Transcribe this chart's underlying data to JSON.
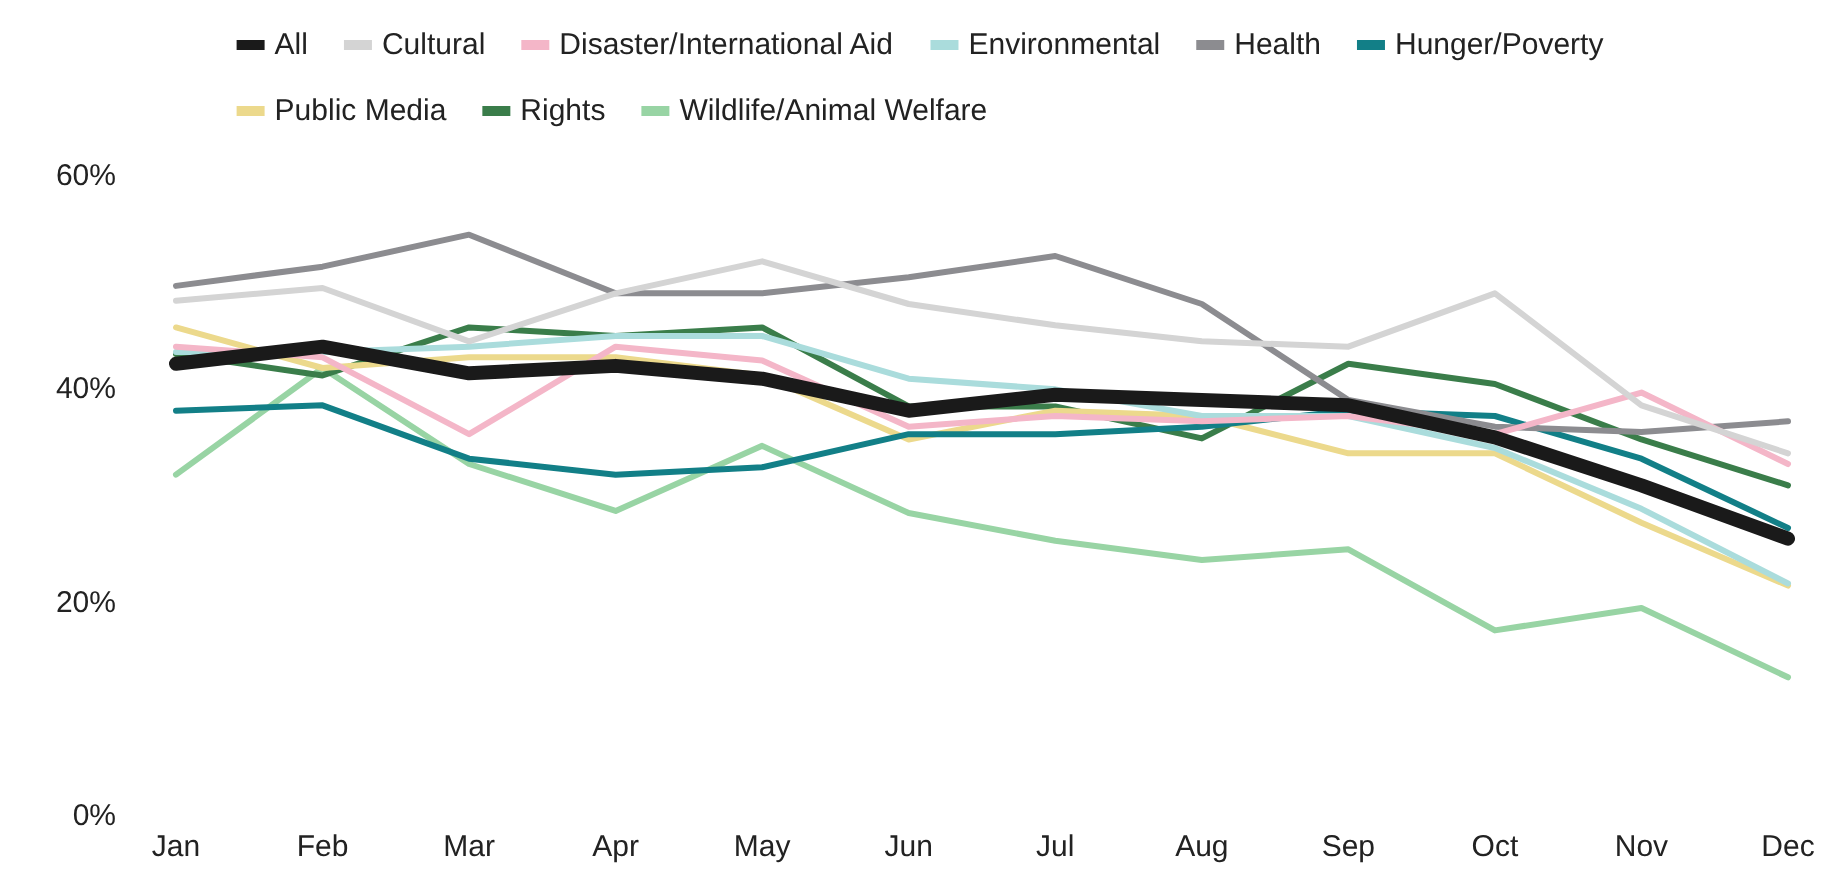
{
  "chart_data": {
    "type": "line",
    "categories": [
      "Jan",
      "Feb",
      "Mar",
      "Apr",
      "May",
      "Jun",
      "Jul",
      "Aug",
      "Sep",
      "Oct",
      "Nov",
      "Dec"
    ],
    "ylim": [
      0,
      60
    ],
    "yticks": [
      {
        "value": 0,
        "label": "0%"
      },
      {
        "value": 20,
        "label": "20%"
      },
      {
        "value": 40,
        "label": "40%"
      },
      {
        "value": 60,
        "label": "60%"
      }
    ],
    "grid": false,
    "legend": "top",
    "marker": "none",
    "line_style": "solid",
    "series": [
      {
        "name": "All",
        "color": "#1a1a1a",
        "values": [
          42.4,
          44,
          41.5,
          42.2,
          41,
          38,
          39.5,
          39,
          38.5,
          35.5,
          31,
          26
        ]
      },
      {
        "name": "Cultural",
        "color": "#d4d4d4",
        "values": [
          48.3,
          49.5,
          44.5,
          49,
          52,
          48,
          46,
          44.5,
          44,
          49,
          38.5,
          34
        ]
      },
      {
        "name": "Disaster/International Aid",
        "color": "#f4b6c8",
        "values": [
          44,
          43,
          35.8,
          44,
          42.7,
          36.5,
          37.5,
          37,
          37.5,
          35.8,
          39.7,
          33
        ]
      },
      {
        "name": "Environmental",
        "color": "#aadcdc",
        "values": [
          43.5,
          43.5,
          44,
          45,
          45,
          41,
          40,
          37.5,
          37.5,
          34.5,
          28.8,
          21.8
        ]
      },
      {
        "name": "Health",
        "color": "#8c8c90",
        "values": [
          49.7,
          51.5,
          54.5,
          49,
          49,
          50.5,
          52.5,
          48,
          39,
          36.5,
          36,
          37
        ]
      },
      {
        "name": "Hunger/Poverty",
        "color": "#127f87",
        "values": [
          38,
          38.5,
          33.5,
          32,
          32.7,
          35.8,
          35.8,
          36.5,
          38,
          37.5,
          33.5,
          27
        ]
      },
      {
        "name": "Public Media",
        "color": "#ecd98c",
        "values": [
          45.8,
          42,
          43,
          43,
          41.3,
          35.3,
          38,
          37.5,
          34,
          34,
          27.5,
          21.6
        ]
      },
      {
        "name": "Rights",
        "color": "#3a7d4a",
        "values": [
          43.3,
          41.3,
          45.8,
          45,
          45.8,
          38.4,
          38.4,
          35.4,
          42.4,
          40.5,
          35.3,
          31
        ]
      },
      {
        "name": "Wildlife/Animal Welfare",
        "color": "#98d4a4",
        "values": [
          32,
          42,
          33,
          28.6,
          34.7,
          28.4,
          25.8,
          24,
          25,
          17.4,
          19.5,
          13
        ]
      }
    ]
  }
}
